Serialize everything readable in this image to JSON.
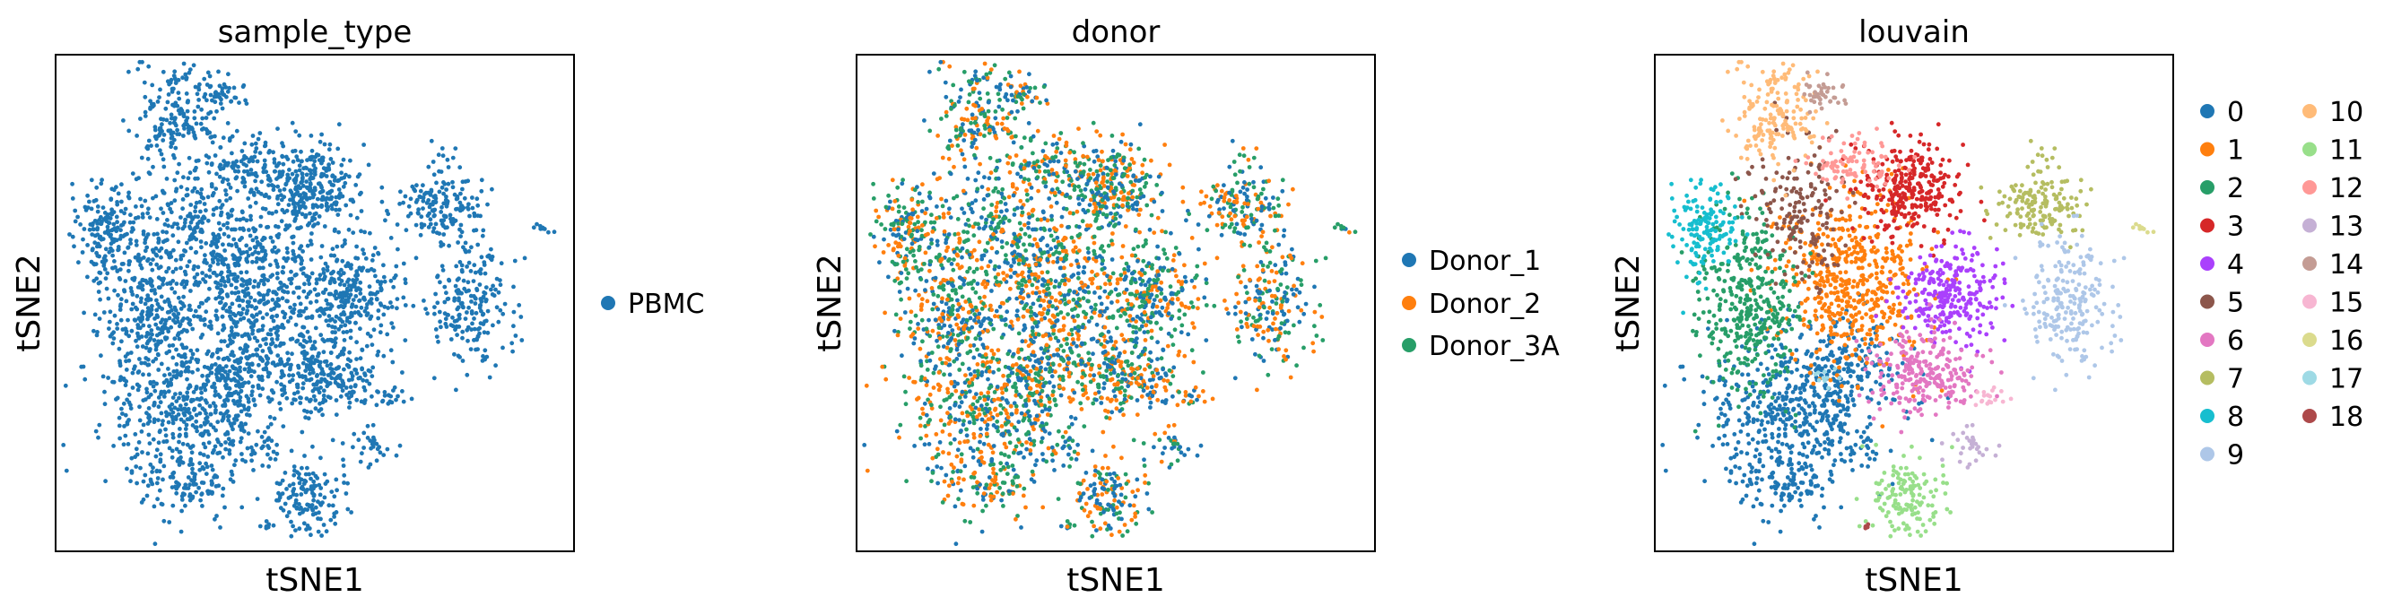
{
  "chart_data": [
    {
      "type": "scatter",
      "title": "sample_type",
      "xlabel": "tSNE1",
      "ylabel": "tSNE2",
      "grid": false,
      "legend": "right",
      "series": [
        {
          "name": "PBMC",
          "color": "#1f77b4"
        }
      ]
    },
    {
      "type": "scatter",
      "title": "donor",
      "xlabel": "tSNE1",
      "ylabel": "tSNE2",
      "grid": false,
      "legend": "right",
      "series": [
        {
          "name": "Donor_1",
          "color": "#1f77b4"
        },
        {
          "name": "Donor_2",
          "color": "#ff7f0e"
        },
        {
          "name": "Donor_3A",
          "color": "#279e68"
        }
      ]
    },
    {
      "type": "scatter",
      "title": "louvain",
      "xlabel": "tSNE1",
      "ylabel": "tSNE2",
      "grid": false,
      "legend": "right",
      "series": [
        {
          "name": "0",
          "color": "#1f77b4"
        },
        {
          "name": "1",
          "color": "#ff7f0e"
        },
        {
          "name": "2",
          "color": "#279e68"
        },
        {
          "name": "3",
          "color": "#d62728"
        },
        {
          "name": "4",
          "color": "#aa40fc"
        },
        {
          "name": "5",
          "color": "#8c564b"
        },
        {
          "name": "6",
          "color": "#e377c2"
        },
        {
          "name": "7",
          "color": "#b5bd61"
        },
        {
          "name": "8",
          "color": "#17becf"
        },
        {
          "name": "9",
          "color": "#aec7e8"
        },
        {
          "name": "10",
          "color": "#ffbb78"
        },
        {
          "name": "11",
          "color": "#98df8a"
        },
        {
          "name": "12",
          "color": "#ff9896"
        },
        {
          "name": "13",
          "color": "#c5b0d5"
        },
        {
          "name": "14",
          "color": "#c49c94"
        },
        {
          "name": "15",
          "color": "#f7b6d2"
        },
        {
          "name": "16",
          "color": "#dbdb8d"
        },
        {
          "name": "17",
          "color": "#9edae5"
        },
        {
          "name": "18",
          "color": "#ad494a"
        }
      ]
    }
  ]
}
